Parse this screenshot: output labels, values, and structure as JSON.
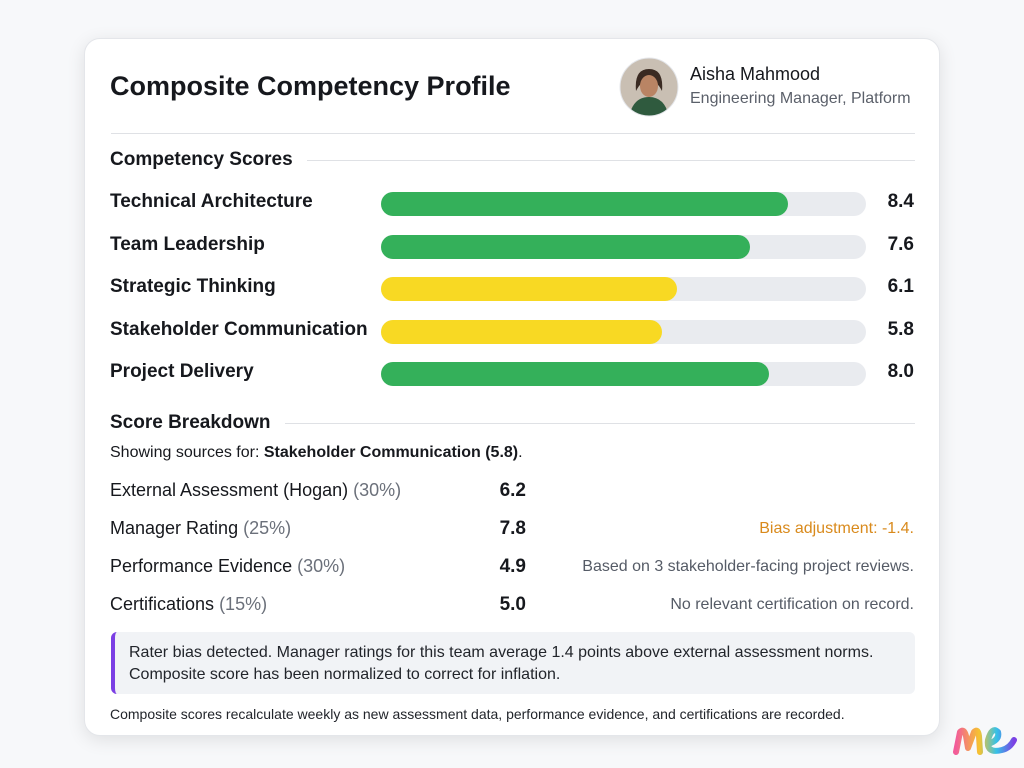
{
  "header": {
    "title": "Composite Competency Profile",
    "person": {
      "name": "Aisha Mahmood",
      "role": "Engineering Manager, Platform"
    }
  },
  "competencies": {
    "heading": "Competency Scores",
    "scale": [
      0,
      10
    ],
    "items": [
      {
        "name": "Technical Architecture",
        "score": 8.4,
        "label": "8.4",
        "color": "#34b05a"
      },
      {
        "name": "Team Leadership",
        "score": 7.6,
        "label": "7.6",
        "color": "#34b05a"
      },
      {
        "name": "Strategic Thinking",
        "score": 6.1,
        "label": "6.1",
        "color": "#f8d923"
      },
      {
        "name": "Stakeholder Communication",
        "score": 5.8,
        "label": "5.8",
        "color": "#f8d923"
      },
      {
        "name": "Project Delivery",
        "score": 8.0,
        "label": "8.0",
        "color": "#34b05a"
      }
    ]
  },
  "breakdown": {
    "heading": "Score Breakdown",
    "intro": {
      "prefix": "Showing sources for: ",
      "focus": "Stakeholder Communication (5.8)",
      "suffix": "."
    },
    "rows": [
      {
        "source": "External Assessment (Hogan)",
        "weight": "(30%)",
        "score": "6.2",
        "note": "",
        "note_color": "#555b66"
      },
      {
        "source": "Manager Rating",
        "weight": "(25%)",
        "score": "7.8",
        "note": "Bias adjustment: -1.4.",
        "note_color": "#d98a1c"
      },
      {
        "source": "Performance Evidence",
        "weight": "(30%)",
        "score": "4.9",
        "note": "Based on 3 stakeholder-facing project reviews.",
        "note_color": "#555b66"
      },
      {
        "source": "Certifications",
        "weight": "(15%)",
        "score": "5.0",
        "note": "No relevant certification on record.",
        "note_color": "#555b66"
      }
    ]
  },
  "alert": {
    "lines": [
      "Rater bias detected. Manager ratings for this team average 1.4 points above external assessment norms.",
      "Composite score has been normalized to correct for inflation."
    ]
  },
  "footer": "Composite scores recalculate weekly as new assessment data, performance evidence, and certifications are recorded."
}
